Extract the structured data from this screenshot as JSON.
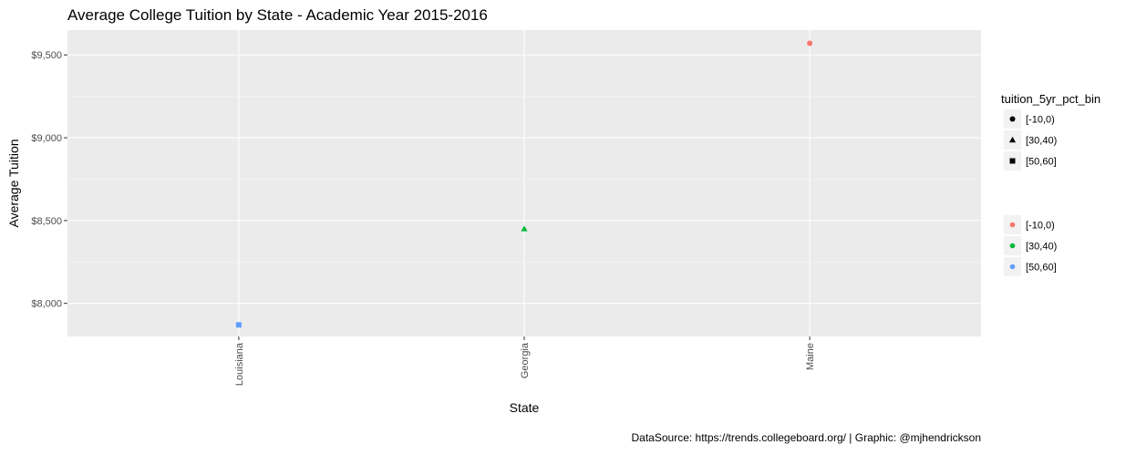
{
  "chart_data": {
    "type": "scatter",
    "title": "Average College Tuition by State - Academic Year 2015-2016",
    "xlabel": "State",
    "ylabel": "Average Tuition",
    "caption": "DataSource: https://trends.collegeboard.org/ | Graphic: @mjhendrickson",
    "categories": [
      "Louisiana",
      "Georgia",
      "Maine"
    ],
    "ylim": [
      7800,
      9650
    ],
    "yticks": [
      8000,
      8500,
      9000,
      9500
    ],
    "ytick_labels": [
      "$8,000",
      "$8,500",
      "$9,000",
      "$9,500"
    ],
    "grid": true,
    "points": [
      {
        "state": "Louisiana",
        "tuition": 7870,
        "bin": "[50,60]",
        "shape": "square",
        "color": "#619CFF"
      },
      {
        "state": "Georgia",
        "tuition": 8450,
        "bin": "[30,40)",
        "shape": "triangle",
        "color": "#00BA38"
      },
      {
        "state": "Maine",
        "tuition": 9570,
        "bin": "[-10,0)",
        "shape": "circle",
        "color": "#F8766D"
      }
    ],
    "legend": {
      "title": "tuition_5yr_pct_bin",
      "placement": "right",
      "shape_items": [
        {
          "label": "[-10,0)",
          "shape": "circle"
        },
        {
          "label": "[30,40)",
          "shape": "triangle"
        },
        {
          "label": "[50,60]",
          "shape": "square"
        }
      ],
      "color_items": [
        {
          "label": "[-10,0)",
          "color": "#F8766D"
        },
        {
          "label": "[30,40)",
          "color": "#00BA38"
        },
        {
          "label": "[50,60]",
          "color": "#619CFF"
        }
      ]
    }
  }
}
